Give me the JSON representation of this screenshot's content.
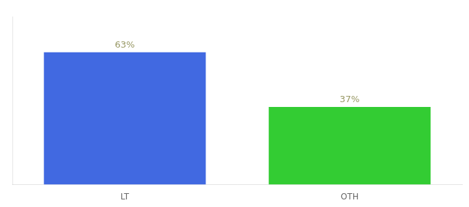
{
  "chart_data": {
    "type": "bar",
    "categories": [
      "LT",
      "OTH"
    ],
    "values": [
      63,
      37
    ],
    "value_labels": [
      "63%",
      "37%"
    ],
    "colors": [
      "#4169e1",
      "#33cc33"
    ],
    "ylim": [
      0,
      80
    ],
    "grid": false,
    "data_labels": true,
    "tick_labels": "x"
  }
}
